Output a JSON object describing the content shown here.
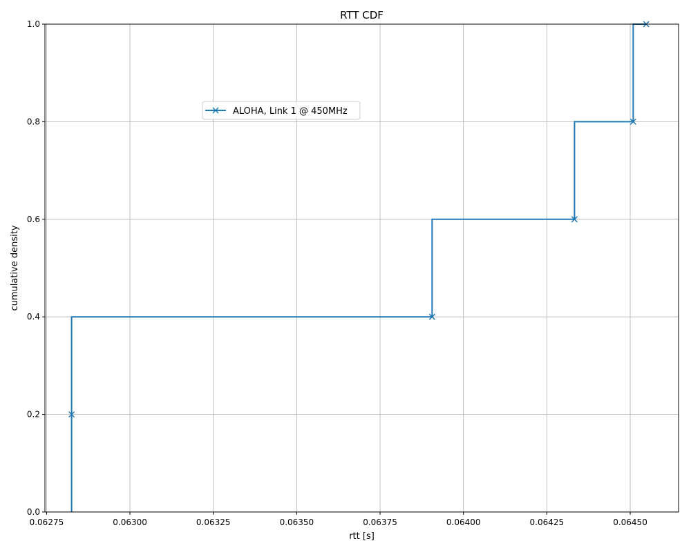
{
  "chart_data": {
    "type": "line",
    "title": "RTT CDF",
    "xlabel": "rtt [s]",
    "ylabel": "cumulative density",
    "xlim": [
      0.062745,
      0.064645
    ],
    "ylim": [
      0.0,
      1.0
    ],
    "x_ticks": [
      "0.06275",
      "0.06300",
      "0.06325",
      "0.06350",
      "0.06375",
      "0.06400",
      "0.06425",
      "0.06450"
    ],
    "y_ticks": [
      "0.0",
      "0.2",
      "0.4",
      "0.6",
      "0.8",
      "1.0"
    ],
    "grid": true,
    "legend_position": "upper-center-left",
    "step": "pre",
    "series": [
      {
        "name": "ALOHA, Link 1 @ 450MHz",
        "color": "#1f77b4",
        "marker": "x",
        "x": [
          0.062825,
          0.062825,
          0.063906,
          0.064333,
          0.064509,
          0.064548
        ],
        "y": [
          0.0,
          0.2,
          0.4,
          0.6,
          0.8,
          1.0
        ]
      }
    ]
  }
}
